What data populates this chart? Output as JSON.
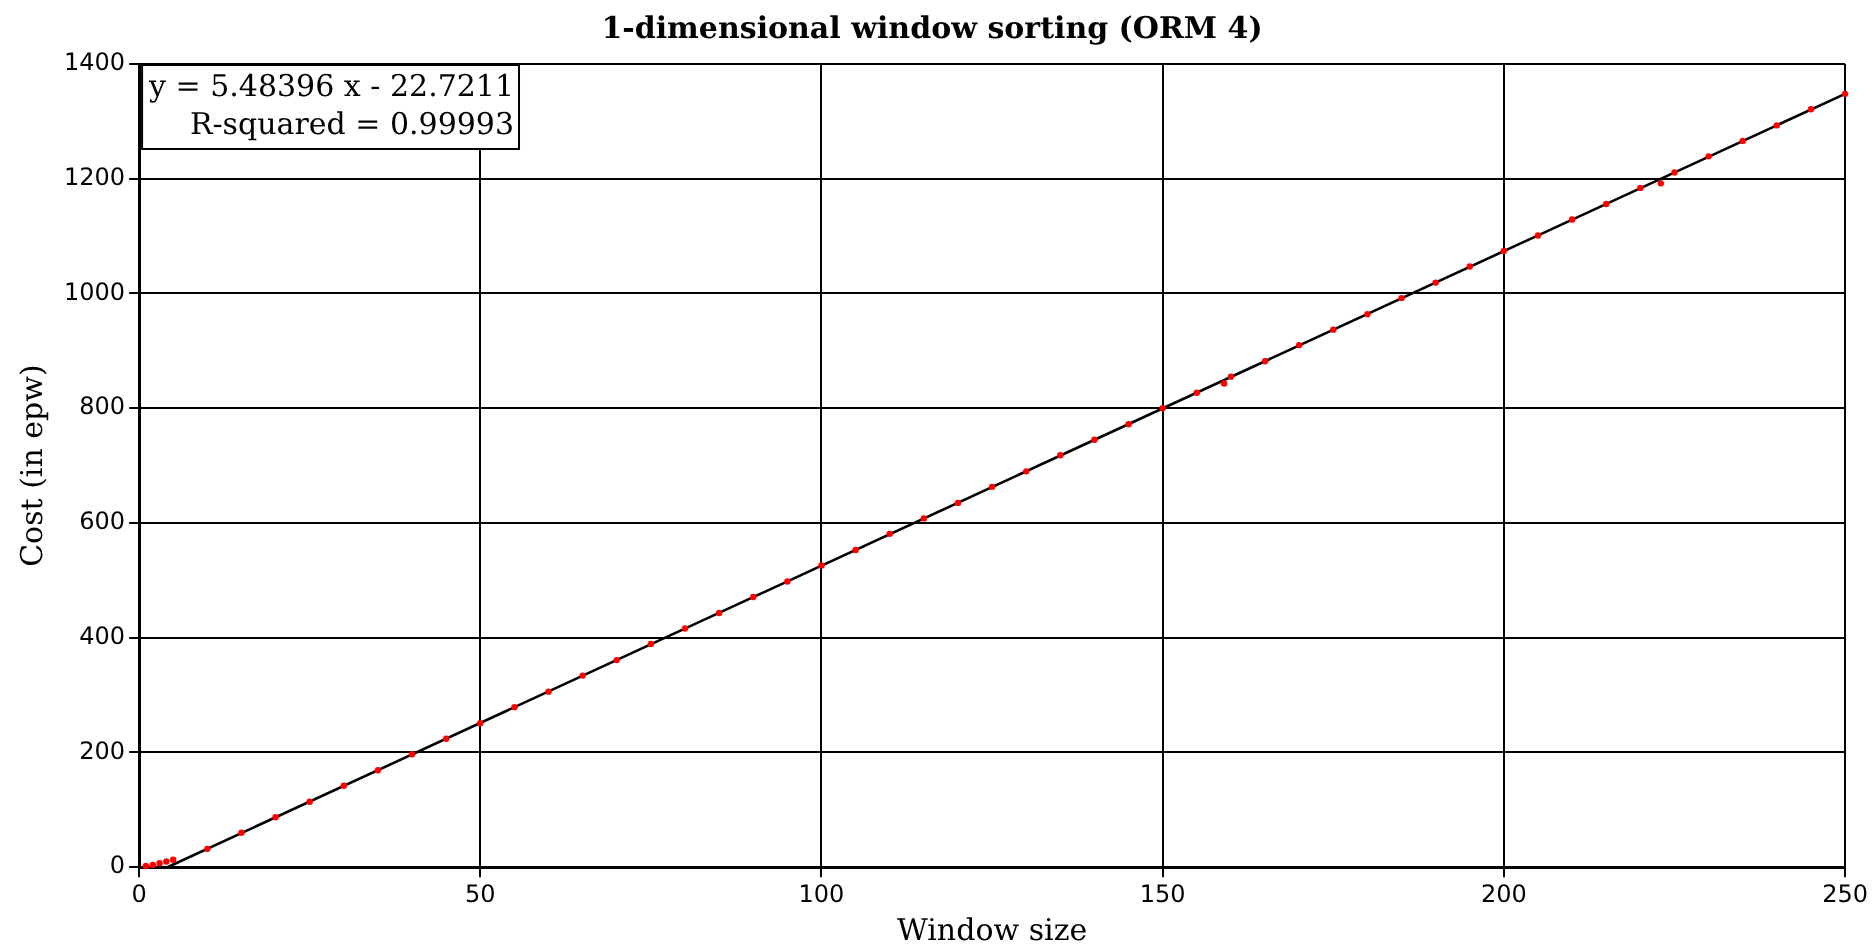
{
  "chart_data": {
    "type": "scatter",
    "title": "1-dimensional window sorting (ORM 4)",
    "xlabel": "Window size",
    "ylabel": "Cost (in epw)",
    "annotations": [
      "y = 5.48396 x - 22.7211",
      "R-squared = 0.99993"
    ],
    "xlim": [
      0,
      250
    ],
    "ylim": [
      0,
      1400
    ],
    "xticks": [
      0,
      50,
      100,
      150,
      200,
      250
    ],
    "yticks": [
      0,
      200,
      400,
      600,
      800,
      1000,
      1200,
      1400
    ],
    "grid": true,
    "legend": false,
    "series": [
      {
        "color": "#ff0000",
        "marker": "circle",
        "x": [
          1,
          2,
          3,
          4,
          5,
          10,
          15,
          20,
          25,
          30,
          35,
          40,
          45,
          50,
          55,
          60,
          65,
          70,
          75,
          80,
          85,
          90,
          95,
          100,
          105,
          110,
          115,
          120,
          125,
          130,
          135,
          140,
          145,
          150,
          155,
          159,
          160,
          165,
          170,
          175,
          180,
          185,
          190,
          195,
          200,
          205,
          210,
          215,
          220,
          223,
          225,
          230,
          235,
          240,
          245,
          250
        ],
        "values": [
          2,
          4,
          7,
          10,
          13,
          32,
          60,
          87,
          114,
          142,
          169,
          197,
          224,
          251,
          279,
          306,
          334,
          361,
          389,
          416,
          443,
          471,
          498,
          526,
          553,
          581,
          608,
          635,
          663,
          690,
          718,
          745,
          772,
          800,
          827,
          843,
          855,
          882,
          910,
          937,
          964,
          992,
          1019,
          1047,
          1074,
          1101,
          1129,
          1156,
          1184,
          1192,
          1211,
          1239,
          1266,
          1293,
          1321,
          1348
        ]
      },
      {
        "type": "line",
        "color": "#000000",
        "x": [
          4.15,
          250
        ],
        "values": [
          0,
          1348
        ],
        "marker": "none"
      }
    ]
  }
}
